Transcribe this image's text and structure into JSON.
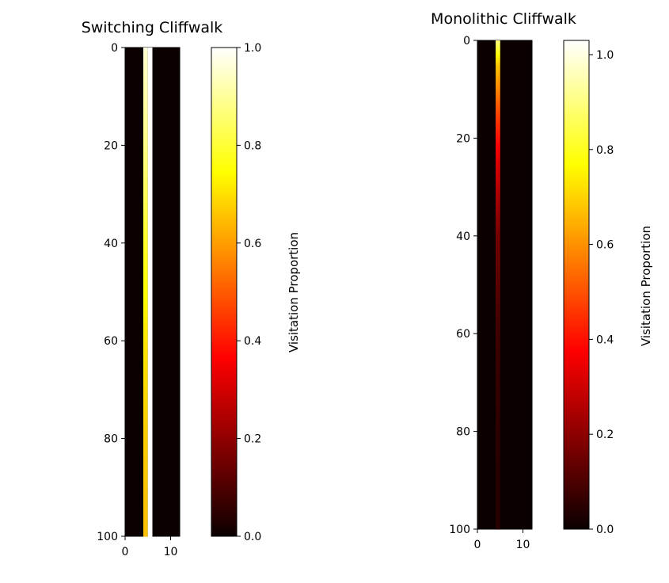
{
  "chart_data": [
    {
      "type": "heatmap",
      "title": "Switching Cliffwalk",
      "colormap": "hot",
      "x_ticks": [
        0,
        10
      ],
      "y_ticks": [
        0,
        20,
        40,
        60,
        80,
        100
      ],
      "xlim": [
        0,
        12
      ],
      "ylim": [
        100,
        0
      ],
      "grid": false,
      "colorbar": {
        "label": "Visitation Proportion",
        "ticks": [
          0.0,
          0.2,
          0.4,
          0.6,
          0.8,
          1.0
        ],
        "range": [
          0.0,
          1.0
        ]
      },
      "columns": [
        {
          "x": 4,
          "profile": [
            [
              0,
              0.98
            ],
            [
              1,
              0.95
            ],
            [
              20,
              0.88
            ],
            [
              40,
              0.79
            ],
            [
              60,
              0.71
            ],
            [
              80,
              0.67
            ],
            [
              100,
              0.65
            ]
          ]
        },
        {
          "x": 5,
          "profile": [
            [
              0,
              1.0
            ],
            [
              100,
              1.0
            ]
          ]
        }
      ]
    },
    {
      "type": "heatmap",
      "title": "Monolithic Cliffwalk",
      "colormap": "hot",
      "x_ticks": [
        0,
        10
      ],
      "y_ticks": [
        0,
        20,
        40,
        60,
        80,
        100
      ],
      "xlim": [
        0,
        12
      ],
      "ylim": [
        100,
        0
      ],
      "grid": false,
      "colorbar": {
        "label": "Visitation Proportion",
        "ticks": [
          0.0,
          0.2,
          0.4,
          0.6,
          0.8,
          1.0
        ],
        "range": [
          0.0,
          1.03
        ]
      },
      "columns": [
        {
          "x": 4,
          "profile": [
            [
              0,
              0.9
            ],
            [
              5,
              0.68
            ],
            [
              15,
              0.48
            ],
            [
              25,
              0.32
            ],
            [
              40,
              0.16
            ],
            [
              60,
              0.08
            ],
            [
              80,
              0.05
            ],
            [
              100,
              0.04
            ]
          ]
        }
      ]
    }
  ]
}
